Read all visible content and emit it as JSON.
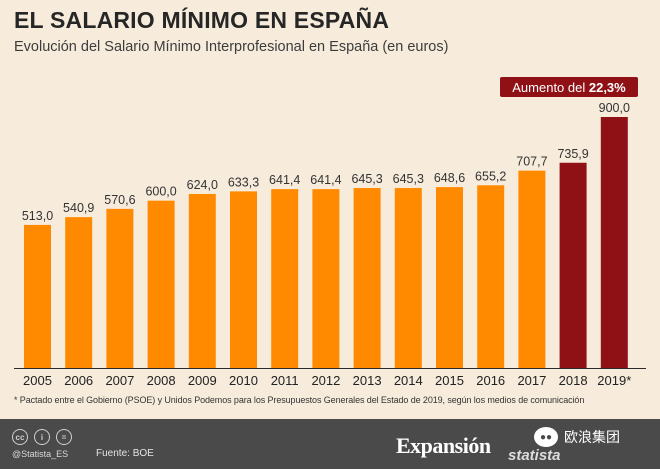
{
  "chart_data": {
    "type": "bar",
    "title": "EL SALARIO MÍNIMO EN ESPAÑA",
    "subtitle": "Evolución del Salario Mínimo Interprofesional en España (en euros)",
    "categories": [
      "2005",
      "2006",
      "2007",
      "2008",
      "2009",
      "2010",
      "2011",
      "2012",
      "2013",
      "2014",
      "2015",
      "2016",
      "2017",
      "2018",
      "2019*"
    ],
    "values": [
      513.0,
      540.9,
      570.6,
      600.0,
      624.0,
      633.3,
      641.4,
      641.4,
      645.3,
      645.3,
      648.6,
      655.2,
      707.7,
      735.9,
      900.0
    ],
    "value_labels": [
      "513,0",
      "540,9",
      "570,6",
      "600,0",
      "624,0",
      "633,3",
      "641,4",
      "641,4",
      "645,3",
      "645,3",
      "648,6",
      "655,2",
      "707,7",
      "735,9",
      "900,0"
    ],
    "highlight_from_index": 13,
    "colors": {
      "default": "#ff8a00",
      "highlight": "#8f1116",
      "baseline": "#2a2a2a"
    },
    "ylim": [
      0,
      900
    ],
    "grid": false,
    "annotation": {
      "prefix": "Aumento del ",
      "value": "22,3%"
    }
  },
  "footnote": "* Pactado entre el Gobierno (PSOE) y Unidos Podemos para los Presupuestos Generales del Estado de 2019, según los medios de comunicación",
  "footer": {
    "license_icons": [
      "cc",
      "i",
      "="
    ],
    "handle": "@Statista_ES",
    "source": "Fuente: BOE",
    "brand_expansion": "Expansión",
    "brand_statista": "statista",
    "wechat_icon": "wechat-icon",
    "wechat_name": "欧浪集团"
  }
}
